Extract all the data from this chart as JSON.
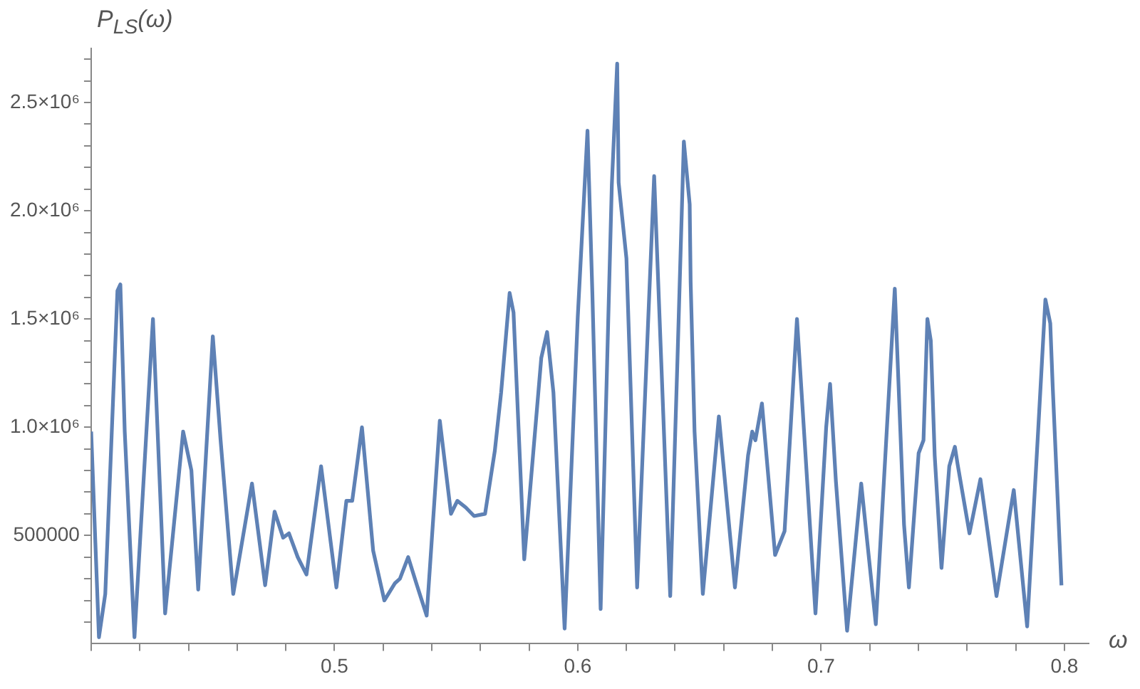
{
  "chart_data": {
    "type": "line",
    "xlabel": "ω",
    "ylabel": "P$_{LS}$(ω)",
    "grid": false,
    "legend": false,
    "marker": "none",
    "line_style": "solid",
    "xlim": [
      0.4,
      0.81
    ],
    "xticks": [
      {
        "value": 0.4,
        "label": null
      },
      {
        "value": 0.42,
        "label": null
      },
      {
        "value": 0.44,
        "label": null
      },
      {
        "value": 0.46,
        "label": null
      },
      {
        "value": 0.48,
        "label": null
      },
      {
        "value": 0.5,
        "label": "0.5"
      },
      {
        "value": 0.52,
        "label": null
      },
      {
        "value": 0.54,
        "label": null
      },
      {
        "value": 0.56,
        "label": null
      },
      {
        "value": 0.58,
        "label": null
      },
      {
        "value": 0.6,
        "label": "0.6"
      },
      {
        "value": 0.62,
        "label": null
      },
      {
        "value": 0.64,
        "label": null
      },
      {
        "value": 0.66,
        "label": null
      },
      {
        "value": 0.68,
        "label": null
      },
      {
        "value": 0.7,
        "label": "0.7"
      },
      {
        "value": 0.72,
        "label": null
      },
      {
        "value": 0.74,
        "label": null
      },
      {
        "value": 0.76,
        "label": null
      },
      {
        "value": 0.78,
        "label": null
      },
      {
        "value": 0.8,
        "label": "0.8"
      }
    ],
    "ylim": [
      0,
      2750000
    ],
    "yticks": [
      {
        "value": 100000,
        "label": null
      },
      {
        "value": 200000,
        "label": null
      },
      {
        "value": 300000,
        "label": null
      },
      {
        "value": 400000,
        "label": null
      },
      500000,
      {
        "value": 600000,
        "label": null
      },
      {
        "value": 700000,
        "label": null
      },
      {
        "value": 800000,
        "label": null
      },
      {
        "value": 900000,
        "label": null
      },
      {
        "value": 1000000,
        "label": "1.0×10⁶"
      },
      {
        "value": 1100000,
        "label": null
      },
      {
        "value": 1200000,
        "label": null
      },
      {
        "value": 1300000,
        "label": null
      },
      {
        "value": 1400000,
        "label": null
      },
      {
        "value": 1500000,
        "label": "1.5×10⁶"
      },
      {
        "value": 1600000,
        "label": null
      },
      {
        "value": 1700000,
        "label": null
      },
      {
        "value": 1800000,
        "label": null
      },
      {
        "value": 1900000,
        "label": null
      },
      {
        "value": 2000000,
        "label": "2.0×10⁶"
      },
      {
        "value": 2100000,
        "label": null
      },
      {
        "value": 2200000,
        "label": null
      },
      {
        "value": 2300000,
        "label": null
      },
      {
        "value": 2400000,
        "label": null
      },
      {
        "value": 2500000,
        "label": "2.5×10⁶"
      },
      {
        "value": 2600000,
        "label": null
      },
      {
        "value": 2700000,
        "label": null
      }
    ],
    "series": [
      {
        "color": "#5e81b5",
        "x": [
          0.4,
          0.4032,
          0.4058,
          0.4108,
          0.412,
          0.4138,
          0.4178,
          0.4254,
          0.4304,
          0.4378,
          0.4412,
          0.444,
          0.45,
          0.4532,
          0.4584,
          0.4661,
          0.4715,
          0.4754,
          0.4789,
          0.4813,
          0.4849,
          0.4885,
          0.4945,
          0.5008,
          0.5049,
          0.5073,
          0.5113,
          0.5159,
          0.5205,
          0.5249,
          0.5269,
          0.5303,
          0.5339,
          0.5379,
          0.5433,
          0.5479,
          0.5505,
          0.5539,
          0.5574,
          0.5619,
          0.5659,
          0.5685,
          0.572,
          0.5736,
          0.578,
          0.585,
          0.5874,
          0.59,
          0.5946,
          0.6,
          0.604,
          0.606,
          0.6094,
          0.614,
          0.6162,
          0.6168,
          0.62,
          0.6244,
          0.6314,
          0.638,
          0.641,
          0.6436,
          0.646,
          0.6464,
          0.648,
          0.6514,
          0.658,
          0.6646,
          0.67,
          0.6717,
          0.673,
          0.6757,
          0.6781,
          0.6811,
          0.685,
          0.6901,
          0.6977,
          0.7021,
          0.7037,
          0.7061,
          0.7107,
          0.7165,
          0.7225,
          0.7303,
          0.7341,
          0.7361,
          0.7401,
          0.7421,
          0.7437,
          0.7451,
          0.7467,
          0.7495,
          0.7527,
          0.755,
          0.7561,
          0.761,
          0.7655,
          0.7721,
          0.7792,
          0.7847,
          0.7892,
          0.7922,
          0.7942,
          0.7952,
          0.7988
        ],
        "values": [
          980000,
          30000,
          230000,
          1630000,
          1660000,
          980000,
          30000,
          1500000,
          140000,
          980000,
          800000,
          250000,
          1420000,
          940000,
          230000,
          740000,
          270000,
          610000,
          490000,
          510000,
          400000,
          320000,
          820000,
          260000,
          660000,
          660000,
          1000000,
          430000,
          200000,
          280000,
          300000,
          400000,
          270000,
          130000,
          1030000,
          600000,
          660000,
          630000,
          590000,
          600000,
          890000,
          1160000,
          1620000,
          1530000,
          390000,
          1320000,
          1440000,
          1160000,
          70000,
          1510000,
          2370000,
          1620000,
          160000,
          2120000,
          2680000,
          2130000,
          1780000,
          260000,
          2160000,
          220000,
          1320000,
          2320000,
          2030000,
          1670000,
          980000,
          230000,
          1050000,
          260000,
          870000,
          980000,
          940000,
          1110000,
          800000,
          410000,
          520000,
          1500000,
          140000,
          1000000,
          1200000,
          750000,
          60000,
          740000,
          90000,
          1640000,
          550000,
          260000,
          880000,
          940000,
          1500000,
          1400000,
          870000,
          350000,
          820000,
          910000,
          830000,
          510000,
          760000,
          220000,
          710000,
          80000,
          980000,
          1590000,
          1480000,
          1190000,
          270000
        ]
      }
    ]
  }
}
